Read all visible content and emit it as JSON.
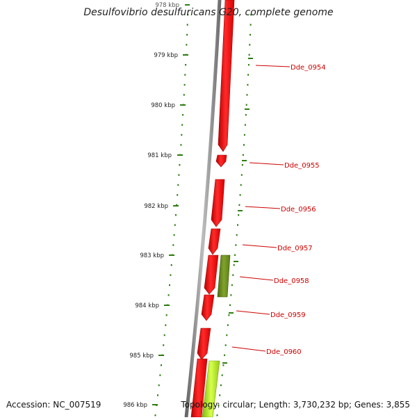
{
  "title": "Desulfovibrio desulfuricans G20, complete genome",
  "accession": "Accession: NC_007519",
  "topology": "Topology: circular; Length: 3,730,232 bp; Genes: 3,855",
  "scale_labels": [
    "978 kbp",
    "979 kbp",
    "980 kbp",
    "981 kbp",
    "982 kbp",
    "983 kbp",
    "984 kbp",
    "985 kbp",
    "986 kbp"
  ],
  "gene_labels": [
    "Dde_0954",
    "Dde_0955",
    "Dde_0956",
    "Dde_0957",
    "Dde_0958",
    "Dde_0959",
    "Dde_0960"
  ],
  "colors": {
    "backbone": "#8a8a8a",
    "gene_red": "#ff1010",
    "gene_green_dark": "#6f8f1f",
    "gene_green_light": "#b5e61d",
    "tick_green": "#2e7d12",
    "label_red": "#cc0000"
  }
}
